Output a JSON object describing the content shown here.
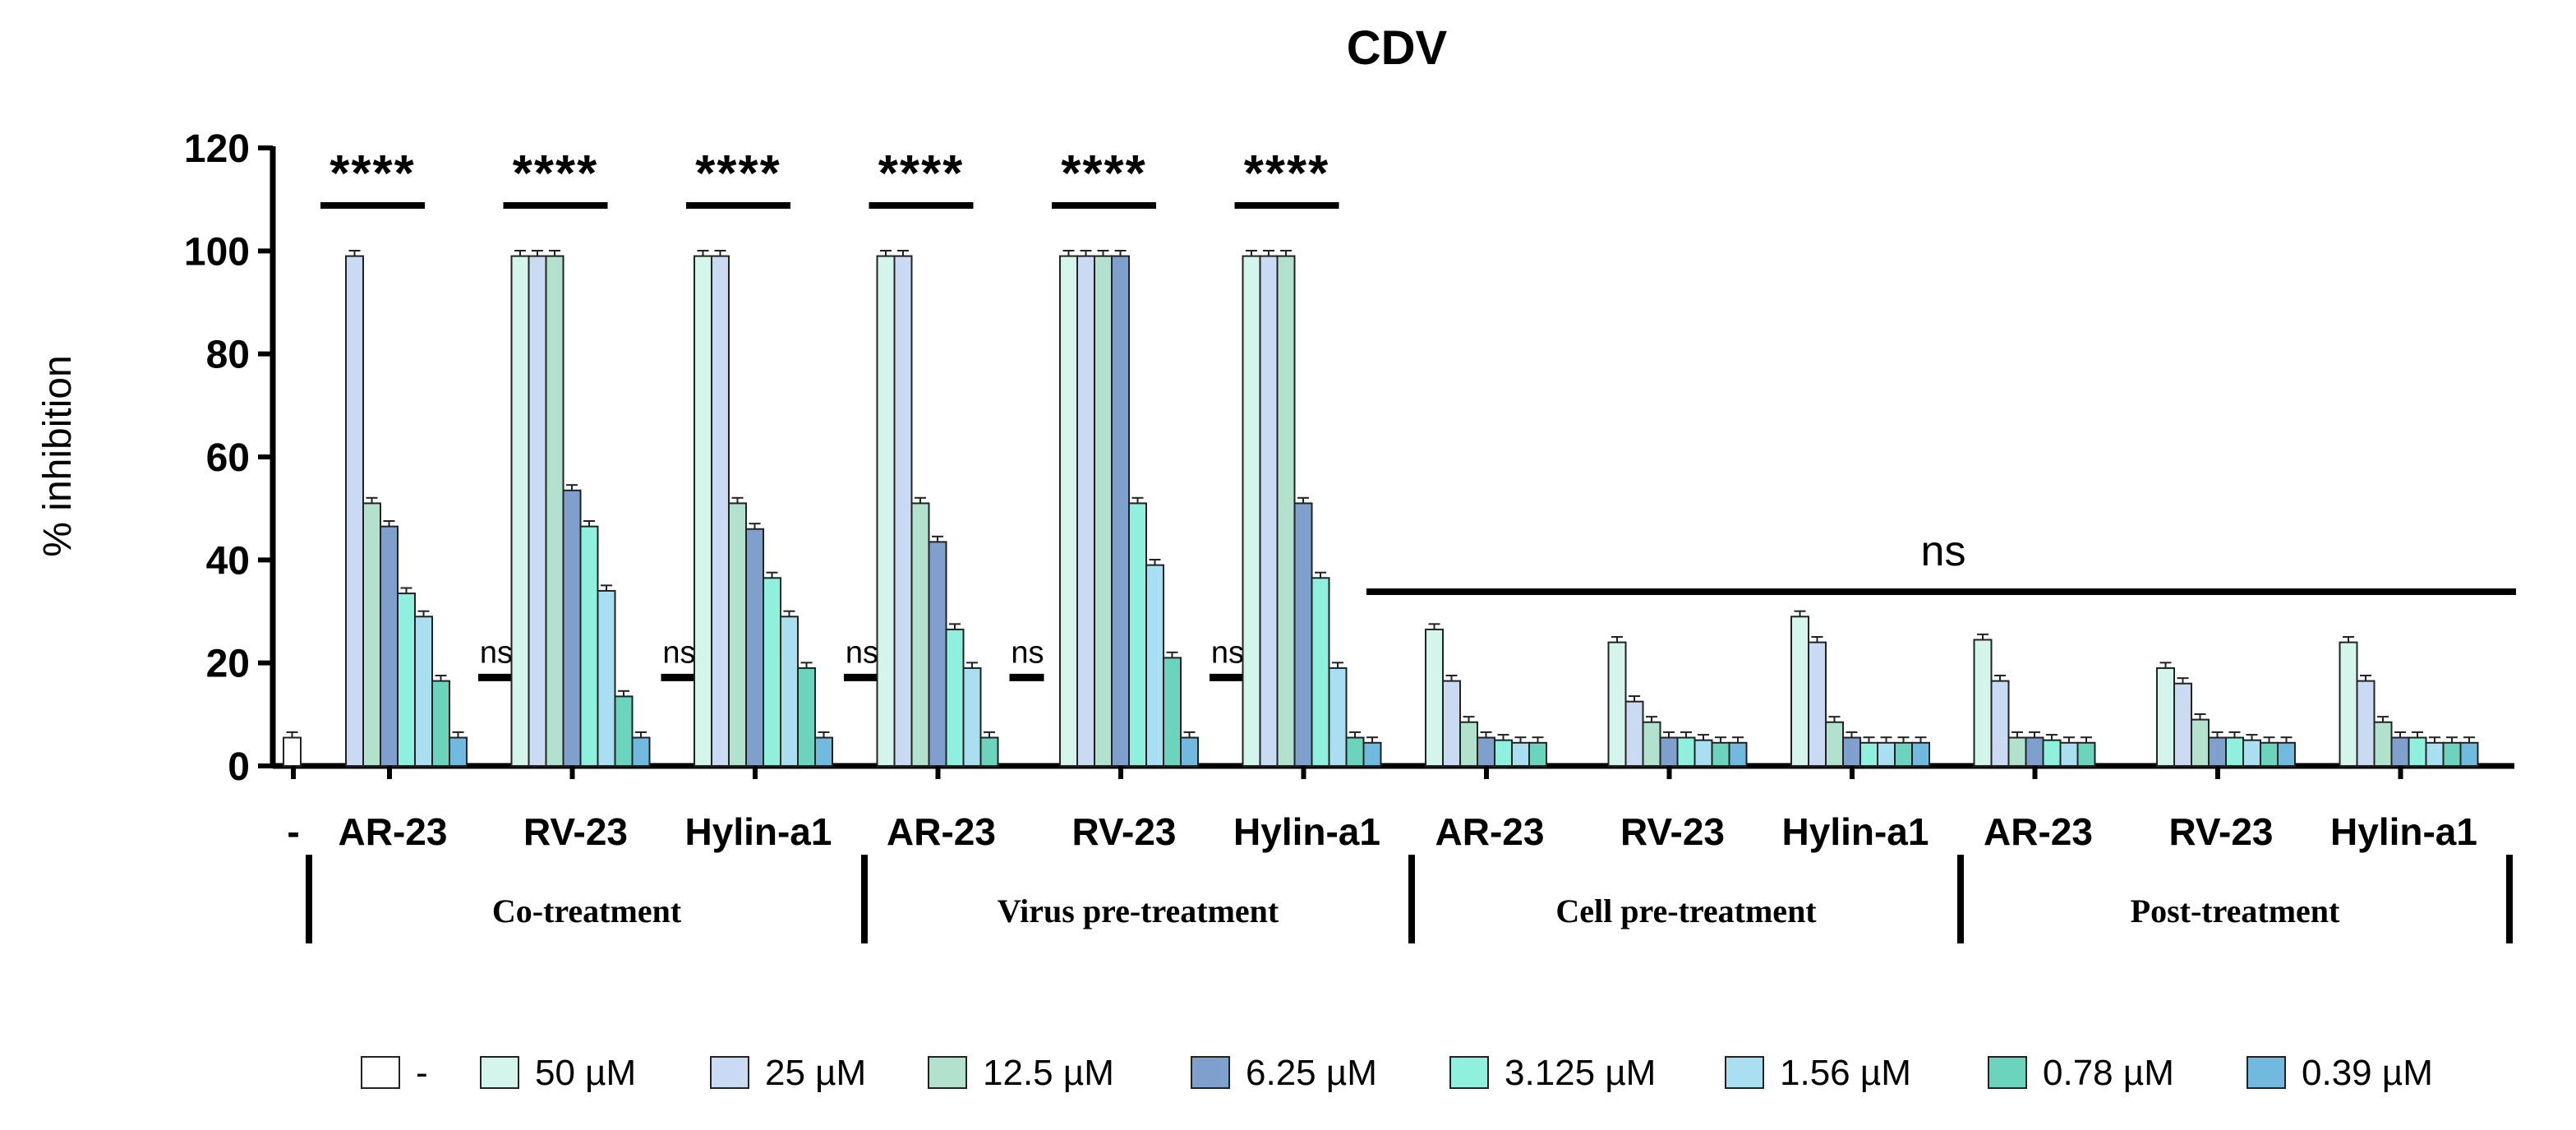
{
  "chart_data": {
    "type": "bar",
    "title": "CDV",
    "xlabel": "",
    "ylabel": "% inhibition",
    "ylim": [
      0,
      120
    ],
    "yticks": [
      "0",
      "20",
      "40",
      "60",
      "80",
      "100",
      "120"
    ],
    "control": {
      "label": "-",
      "value": 5.5,
      "color": "#ffffff"
    },
    "series": [
      {
        "name": "50 µM",
        "color": "#d4f5ec"
      },
      {
        "name": "25 µM",
        "color": "#c9daf2"
      },
      {
        "name": "12.5 µM",
        "color": "#b2e2cd"
      },
      {
        "name": "6.25 µM",
        "color": "#7f9fcc"
      },
      {
        "name": "3.125 µM",
        "color": "#8ff0dd"
      },
      {
        "name": "1.56 µM",
        "color": "#a9dff0"
      },
      {
        "name": "0.78 µM",
        "color": "#6cd4bd"
      },
      {
        "name": "0.39 µM",
        "color": "#72b9df"
      }
    ],
    "groups": [
      {
        "treatment": "Co-treatment",
        "compound": "AR-23",
        "values": [
          null,
          99,
          51,
          46.5,
          33.5,
          29,
          16.5,
          5.5
        ],
        "significance": "****",
        "tail_label": "ns"
      },
      {
        "treatment": "Co-treatment",
        "compound": "RV-23",
        "values": [
          99,
          99,
          99,
          53.5,
          46.5,
          34,
          13.5,
          5.5
        ],
        "significance": "****",
        "tail_label": "ns"
      },
      {
        "treatment": "Co-treatment",
        "compound": "Hylin-a1",
        "values": [
          99,
          99,
          51,
          46,
          36.5,
          29,
          19,
          5.5
        ],
        "significance": "****",
        "tail_label": "ns"
      },
      {
        "treatment": "Virus pre-treatment",
        "compound": "AR-23",
        "values": [
          99,
          99,
          51,
          43.5,
          26.5,
          19,
          5.5,
          null
        ],
        "significance": "****",
        "tail_label": "ns"
      },
      {
        "treatment": "Virus pre-treatment",
        "compound": "RV-23",
        "values": [
          99,
          99,
          99,
          99,
          51,
          39,
          21,
          5.5
        ],
        "significance": "****",
        "tail_label": "ns"
      },
      {
        "treatment": "Virus pre-treatment",
        "compound": "Hylin-a1",
        "values": [
          99,
          99,
          99,
          51,
          36.5,
          19,
          5.5,
          4.5
        ],
        "significance": "****",
        "tail_label": ""
      },
      {
        "treatment": "Cell pre-treatment",
        "compound": "AR-23",
        "values": [
          26.5,
          16.5,
          8.5,
          5.5,
          5,
          4.5,
          4.5,
          null
        ],
        "significance": "",
        "tail_label": ""
      },
      {
        "treatment": "Cell pre-treatment",
        "compound": "RV-23",
        "values": [
          24,
          12.5,
          8.5,
          5.5,
          5.5,
          5,
          4.5,
          4.5
        ],
        "significance": "",
        "tail_label": ""
      },
      {
        "treatment": "Cell pre-treatment",
        "compound": "Hylin-a1",
        "values": [
          29,
          24,
          8.5,
          5.5,
          4.5,
          4.5,
          4.5,
          4.5
        ],
        "significance": "",
        "tail_label": ""
      },
      {
        "treatment": "Post-treatment",
        "compound": "AR-23",
        "values": [
          24.5,
          16.5,
          5.5,
          5.5,
          5,
          4.5,
          4.5,
          null
        ],
        "significance": "",
        "tail_label": ""
      },
      {
        "treatment": "Post-treatment",
        "compound": "RV-23",
        "values": [
          19,
          16,
          9,
          5.5,
          5.5,
          5,
          4.5,
          4.5
        ],
        "significance": "",
        "tail_label": ""
      },
      {
        "treatment": "Post-treatment",
        "compound": "Hylin-a1",
        "values": [
          24,
          16.5,
          8.5,
          5.5,
          5.5,
          4.5,
          4.5,
          4.5
        ],
        "significance": "",
        "tail_label": ""
      }
    ],
    "treatments": [
      "Co-treatment",
      "Virus pre-treatment",
      "Cell pre-treatment",
      "Post-treatment"
    ],
    "overall_annotation": "ns",
    "legend": [
      "-",
      "50 µM",
      "25 µM",
      "12.5 µM",
      "6.25 µM",
      "3.125 µM",
      "1.56 µM",
      "0.78 µM",
      "0.39 µM"
    ]
  }
}
